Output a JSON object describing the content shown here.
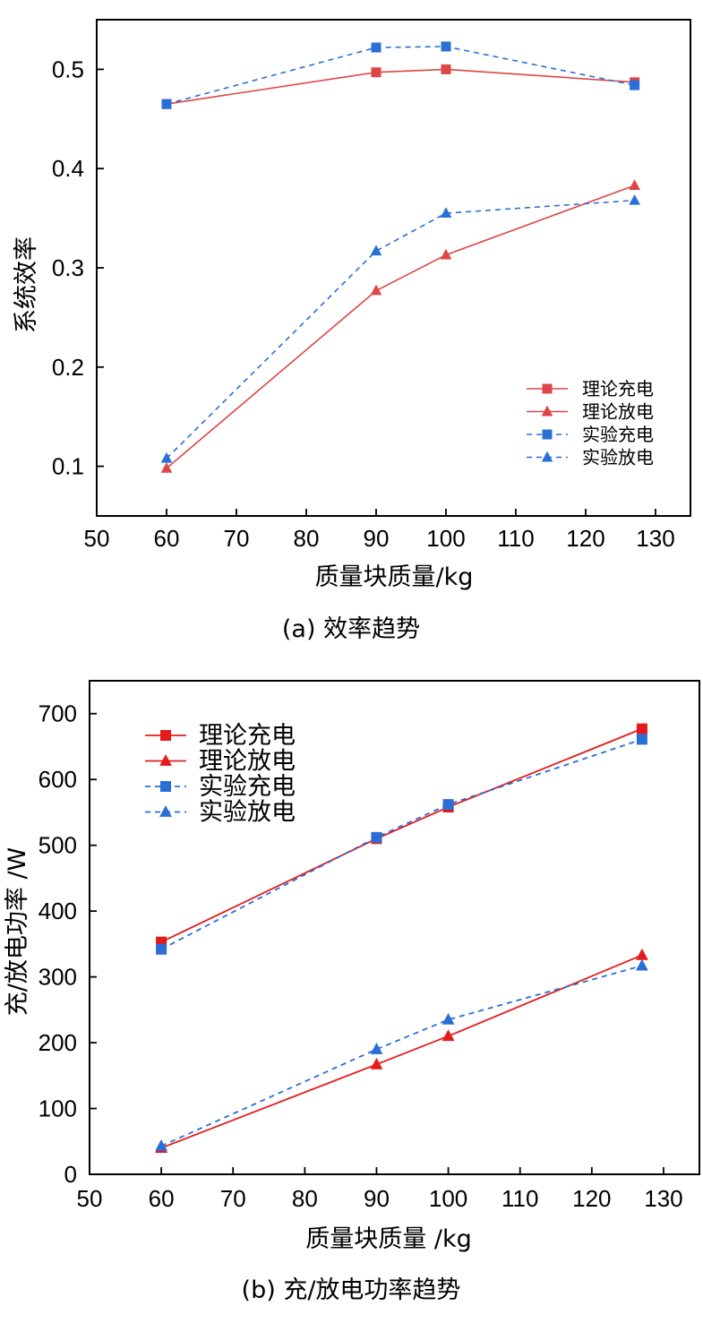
{
  "chart_data": [
    {
      "type": "line",
      "caption": "(a) 效率趋势",
      "xlabel": "质量块质量/kg",
      "ylabel": "系统效率",
      "xlim": [
        50,
        135
      ],
      "ylim": [
        0.05,
        0.55
      ],
      "xticks": [
        50,
        60,
        70,
        80,
        90,
        100,
        110,
        120,
        130
      ],
      "yticks": [
        0.1,
        0.2,
        0.3,
        0.4,
        0.5
      ],
      "ytick_labels": [
        "0.1",
        "0.2",
        "0.3",
        "0.4",
        "0.5"
      ],
      "legend_position": "lower-right",
      "grid": false,
      "series": [
        {
          "name": "理论充电",
          "marker": "square",
          "line_style": "solid",
          "color": "#e04545",
          "x": [
            60,
            90,
            100,
            127
          ],
          "y": [
            0.465,
            0.497,
            0.5,
            0.487
          ]
        },
        {
          "name": "理论放电",
          "marker": "triangle",
          "line_style": "solid",
          "color": "#e04545",
          "x": [
            60,
            90,
            100,
            127
          ],
          "y": [
            0.098,
            0.277,
            0.313,
            0.383
          ]
        },
        {
          "name": "实验充电",
          "marker": "square",
          "line_style": "dashed",
          "color": "#2a6fd6",
          "x": [
            60,
            90,
            100,
            127
          ],
          "y": [
            0.465,
            0.522,
            0.523,
            0.484
          ]
        },
        {
          "name": "实验放电",
          "marker": "triangle",
          "line_style": "dashed",
          "color": "#2a6fd6",
          "x": [
            60,
            90,
            100,
            127
          ],
          "y": [
            0.108,
            0.317,
            0.355,
            0.368
          ]
        }
      ]
    },
    {
      "type": "line",
      "caption": "(b) 充/放电功率趋势",
      "xlabel": "质量块质量 /kg",
      "ylabel": "充/放电功率 /W",
      "xlim": [
        50,
        135
      ],
      "ylim": [
        0,
        750
      ],
      "xticks": [
        50,
        60,
        70,
        80,
        90,
        100,
        110,
        120,
        130
      ],
      "yticks": [
        0,
        100,
        200,
        300,
        400,
        500,
        600,
        700
      ],
      "ytick_labels": [
        "0",
        "100",
        "200",
        "300",
        "400",
        "500",
        "600",
        "700"
      ],
      "legend_position": "top-left",
      "grid": false,
      "series": [
        {
          "name": "理论充电",
          "marker": "square",
          "line_style": "solid",
          "color": "#e51b1b",
          "x": [
            60,
            90,
            100,
            127
          ],
          "y": [
            353,
            510,
            558,
            677
          ]
        },
        {
          "name": "理论放电",
          "marker": "triangle",
          "line_style": "solid",
          "color": "#e51b1b",
          "x": [
            60,
            90,
            100,
            127
          ],
          "y": [
            40,
            167,
            210,
            333
          ]
        },
        {
          "name": "实验充电",
          "marker": "square",
          "line_style": "dashed",
          "color": "#2a6fd6",
          "x": [
            60,
            90,
            100,
            127
          ],
          "y": [
            342,
            512,
            562,
            661
          ]
        },
        {
          "name": "实验放电",
          "marker": "triangle",
          "line_style": "dashed",
          "color": "#2a6fd6",
          "x": [
            60,
            90,
            100,
            127
          ],
          "y": [
            43,
            190,
            235,
            317
          ]
        }
      ]
    }
  ]
}
